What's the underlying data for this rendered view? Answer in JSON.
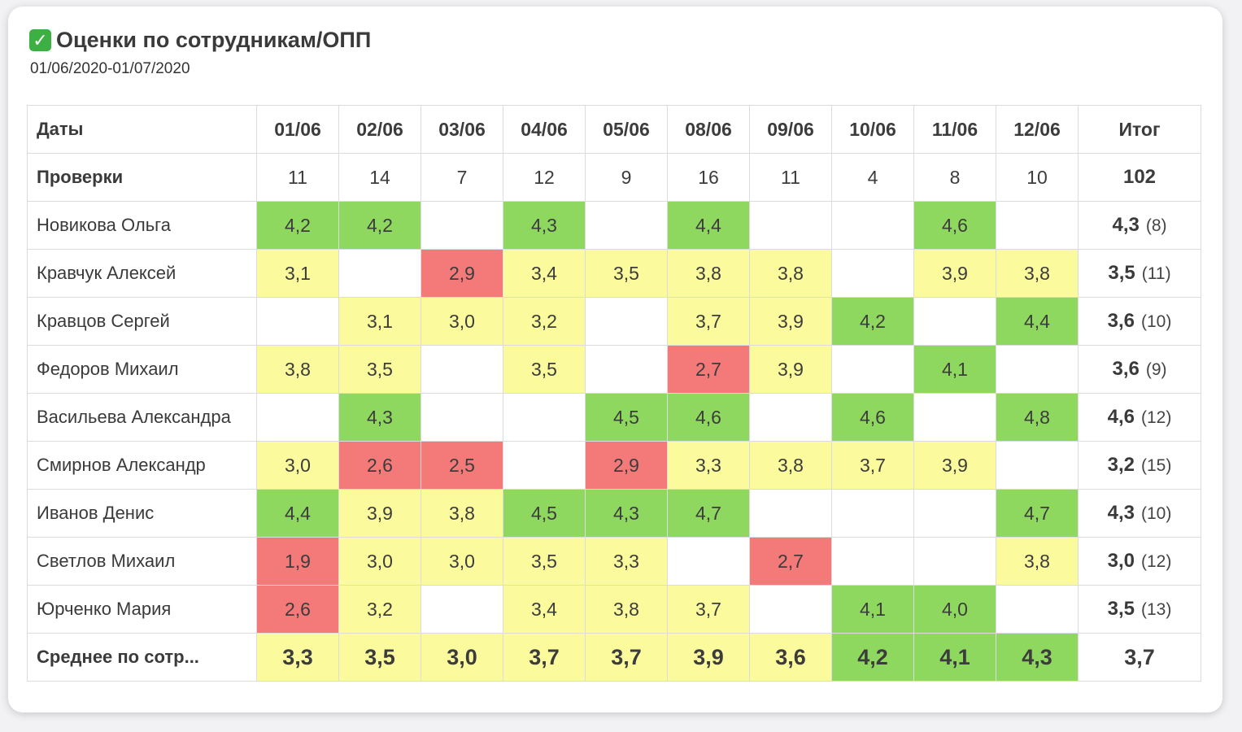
{
  "title": "Оценки по сотрудникам/ОПП",
  "date_range": "01/06/2020-01/07/2020",
  "colors": {
    "good": "#8fd860",
    "mid": "#fbfa9c",
    "bad": "#f37a78"
  },
  "header": {
    "label": "Даты",
    "dates": [
      "01/06",
      "02/06",
      "03/06",
      "04/06",
      "05/06",
      "08/06",
      "09/06",
      "10/06",
      "11/06",
      "12/06"
    ],
    "total_label": "Итог"
  },
  "checks": {
    "label": "Проверки",
    "values": [
      "11",
      "14",
      "7",
      "12",
      "9",
      "16",
      "11",
      "4",
      "8",
      "10"
    ],
    "total": "102"
  },
  "employees": [
    {
      "name": "Новикова Ольга",
      "cells": [
        {
          "v": "4,2",
          "c": "g"
        },
        {
          "v": "4,2",
          "c": "g"
        },
        {
          "v": "",
          "c": ""
        },
        {
          "v": "4,3",
          "c": "g"
        },
        {
          "v": "",
          "c": ""
        },
        {
          "v": "4,4",
          "c": "g"
        },
        {
          "v": "",
          "c": ""
        },
        {
          "v": "",
          "c": ""
        },
        {
          "v": "4,6",
          "c": "g"
        },
        {
          "v": "",
          "c": ""
        }
      ],
      "score": "4,3",
      "count": "(8)"
    },
    {
      "name": "Кравчук Алексей",
      "cells": [
        {
          "v": "3,1",
          "c": "y"
        },
        {
          "v": "",
          "c": ""
        },
        {
          "v": "2,9",
          "c": "r"
        },
        {
          "v": "3,4",
          "c": "y"
        },
        {
          "v": "3,5",
          "c": "y"
        },
        {
          "v": "3,8",
          "c": "y"
        },
        {
          "v": "3,8",
          "c": "y"
        },
        {
          "v": "",
          "c": ""
        },
        {
          "v": "3,9",
          "c": "y"
        },
        {
          "v": "3,8",
          "c": "y"
        }
      ],
      "score": "3,5",
      "count": "(11)"
    },
    {
      "name": "Кравцов Сергей",
      "cells": [
        {
          "v": "",
          "c": ""
        },
        {
          "v": "3,1",
          "c": "y"
        },
        {
          "v": "3,0",
          "c": "y"
        },
        {
          "v": "3,2",
          "c": "y"
        },
        {
          "v": "",
          "c": ""
        },
        {
          "v": "3,7",
          "c": "y"
        },
        {
          "v": "3,9",
          "c": "y"
        },
        {
          "v": "4,2",
          "c": "g"
        },
        {
          "v": "",
          "c": ""
        },
        {
          "v": "4,4",
          "c": "g"
        }
      ],
      "score": "3,6",
      "count": "(10)"
    },
    {
      "name": "Федоров Михаил",
      "cells": [
        {
          "v": "3,8",
          "c": "y"
        },
        {
          "v": "3,5",
          "c": "y"
        },
        {
          "v": "",
          "c": ""
        },
        {
          "v": "3,5",
          "c": "y"
        },
        {
          "v": "",
          "c": ""
        },
        {
          "v": "2,7",
          "c": "r"
        },
        {
          "v": "3,9",
          "c": "y"
        },
        {
          "v": "",
          "c": ""
        },
        {
          "v": "4,1",
          "c": "g"
        },
        {
          "v": "",
          "c": ""
        }
      ],
      "score": "3,6",
      "count": "(9)"
    },
    {
      "name": "Васильева Александра",
      "cells": [
        {
          "v": "",
          "c": ""
        },
        {
          "v": "4,3",
          "c": "g"
        },
        {
          "v": "",
          "c": ""
        },
        {
          "v": "",
          "c": ""
        },
        {
          "v": "4,5",
          "c": "g"
        },
        {
          "v": "4,6",
          "c": "g"
        },
        {
          "v": "",
          "c": ""
        },
        {
          "v": "4,6",
          "c": "g"
        },
        {
          "v": "",
          "c": ""
        },
        {
          "v": "4,8",
          "c": "g"
        }
      ],
      "score": "4,6",
      "count": "(12)"
    },
    {
      "name": "Смирнов Александр",
      "cells": [
        {
          "v": "3,0",
          "c": "y"
        },
        {
          "v": "2,6",
          "c": "r"
        },
        {
          "v": "2,5",
          "c": "r"
        },
        {
          "v": "",
          "c": ""
        },
        {
          "v": "2,9",
          "c": "r"
        },
        {
          "v": "3,3",
          "c": "y"
        },
        {
          "v": "3,8",
          "c": "y"
        },
        {
          "v": "3,7",
          "c": "y"
        },
        {
          "v": "3,9",
          "c": "y"
        },
        {
          "v": "",
          "c": ""
        }
      ],
      "score": "3,2",
      "count": "(15)"
    },
    {
      "name": "Иванов Денис",
      "cells": [
        {
          "v": "4,4",
          "c": "g"
        },
        {
          "v": "3,9",
          "c": "y"
        },
        {
          "v": "3,8",
          "c": "y"
        },
        {
          "v": "4,5",
          "c": "g"
        },
        {
          "v": "4,3",
          "c": "g"
        },
        {
          "v": "4,7",
          "c": "g"
        },
        {
          "v": "",
          "c": ""
        },
        {
          "v": "",
          "c": ""
        },
        {
          "v": "",
          "c": ""
        },
        {
          "v": "4,7",
          "c": "g"
        }
      ],
      "score": "4,3",
      "count": "(10)"
    },
    {
      "name": "Светлов Михаил",
      "cells": [
        {
          "v": "1,9",
          "c": "r"
        },
        {
          "v": "3,0",
          "c": "y"
        },
        {
          "v": "3,0",
          "c": "y"
        },
        {
          "v": "3,5",
          "c": "y"
        },
        {
          "v": "3,3",
          "c": "y"
        },
        {
          "v": "",
          "c": ""
        },
        {
          "v": "2,7",
          "c": "r"
        },
        {
          "v": "",
          "c": ""
        },
        {
          "v": "",
          "c": ""
        },
        {
          "v": "3,8",
          "c": "y"
        }
      ],
      "score": "3,0",
      "count": "(12)"
    },
    {
      "name": "Юрченко Мария",
      "cells": [
        {
          "v": "2,6",
          "c": "r"
        },
        {
          "v": "3,2",
          "c": "y"
        },
        {
          "v": "",
          "c": ""
        },
        {
          "v": "3,4",
          "c": "y"
        },
        {
          "v": "3,8",
          "c": "y"
        },
        {
          "v": "3,7",
          "c": "y"
        },
        {
          "v": "",
          "c": ""
        },
        {
          "v": "4,1",
          "c": "g"
        },
        {
          "v": "4,0",
          "c": "g"
        },
        {
          "v": "",
          "c": ""
        }
      ],
      "score": "3,5",
      "count": "(13)"
    }
  ],
  "average": {
    "label": "Среднее по сотр...",
    "cells": [
      {
        "v": "3,3",
        "c": "y"
      },
      {
        "v": "3,5",
        "c": "y"
      },
      {
        "v": "3,0",
        "c": "y"
      },
      {
        "v": "3,7",
        "c": "y"
      },
      {
        "v": "3,7",
        "c": "y"
      },
      {
        "v": "3,9",
        "c": "y"
      },
      {
        "v": "3,6",
        "c": "y"
      },
      {
        "v": "4,2",
        "c": "g"
      },
      {
        "v": "4,1",
        "c": "g"
      },
      {
        "v": "4,3",
        "c": "g"
      }
    ],
    "total": "3,7"
  }
}
